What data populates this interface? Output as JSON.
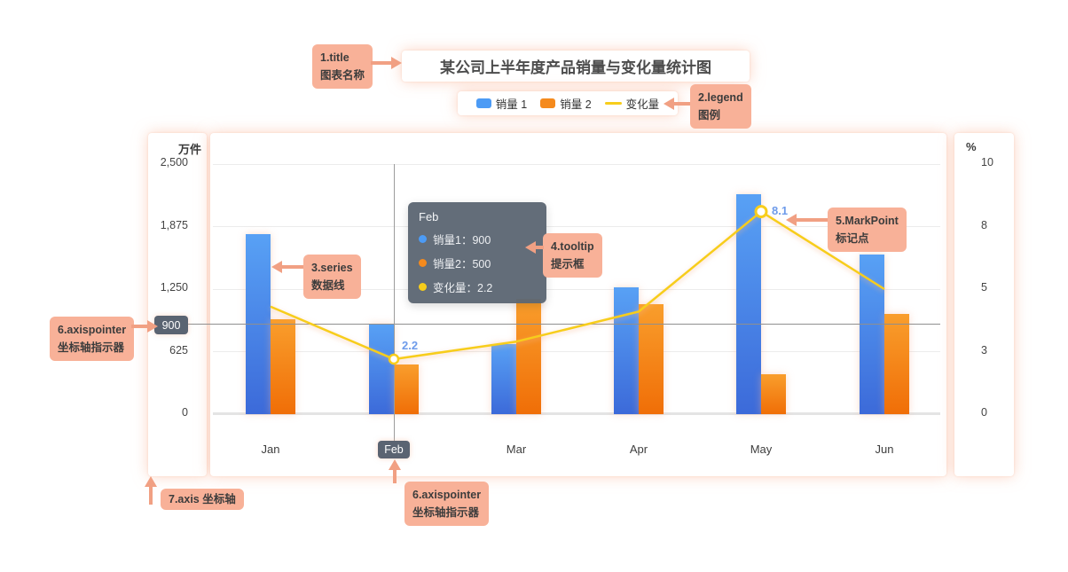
{
  "chart": {
    "title": "某公司上半年度产品销量与变化量统计图",
    "legend": [
      {
        "label": "销量 1",
        "color": "#4C9BF5",
        "type": "rect"
      },
      {
        "label": "销量 2",
        "color": "#F58A1D",
        "type": "rect"
      },
      {
        "label": "变化量",
        "color": "#F7CD1B",
        "type": "line"
      }
    ]
  },
  "callouts": {
    "title": {
      "line1": "1.title",
      "line2": "图表名称"
    },
    "legend": {
      "line1": "2.legend",
      "line2": "图例"
    },
    "series": {
      "line1": "3.series",
      "line2": "数据线"
    },
    "tooltip": {
      "line1": "4.tooltip",
      "line2": "提示框"
    },
    "markpoint": {
      "line1": "5.MarkPoint",
      "line2": "标记点"
    },
    "axispointer_left": {
      "line1": "6.axispointer",
      "line2": "坐标轴指示器"
    },
    "axispointer_bottom": {
      "line1": "6.axispointer",
      "line2": "坐标轴指示器"
    },
    "axis": {
      "line1": "7.axis 坐标轴"
    }
  },
  "tooltip": {
    "header": "Feb",
    "rows": [
      {
        "color": "#4C9BF5",
        "text": "销量1：900"
      },
      {
        "color": "#F58A1D",
        "text": "销量2：500"
      },
      {
        "color": "#F7CD1B",
        "text": "变化量：2.2"
      }
    ]
  },
  "axis_pointer": {
    "y_label": "900",
    "x_label": "Feb"
  },
  "chart_data": {
    "type": "combo",
    "subtypes": [
      "bar",
      "bar",
      "line"
    ],
    "title": "某公司上半年度产品销量与变化量统计图",
    "categories": [
      "Jan",
      "Feb",
      "Mar",
      "Apr",
      "May",
      "Jun"
    ],
    "series": [
      {
        "name": "销量 1",
        "type": "bar",
        "axis": "left",
        "values": [
          1800,
          900,
          700,
          1270,
          2200,
          1600
        ],
        "gradient": [
          "#58A1F5",
          "#3C6AD9"
        ]
      },
      {
        "name": "销量 2",
        "type": "bar",
        "axis": "left",
        "values": [
          950,
          500,
          1150,
          1100,
          400,
          1000
        ],
        "gradient": [
          "#F99E2C",
          "#F06E07"
        ]
      },
      {
        "name": "变化量",
        "type": "line",
        "axis": "right",
        "values": [
          4.3,
          2.2,
          2.9,
          4.1,
          8.1,
          5.0
        ],
        "color": "#F7CD1B"
      }
    ],
    "y_left": {
      "unit": "万件",
      "min": 0,
      "max": 2500,
      "ticks": [
        {
          "v": 2500,
          "label": "2,500"
        },
        {
          "v": 1875,
          "label": "1,875"
        },
        {
          "v": 1250,
          "label": "1,250"
        },
        {
          "v": 625,
          "label": "625"
        },
        {
          "v": 0,
          "label": "0"
        }
      ]
    },
    "y_right": {
      "unit": "%",
      "min": 0,
      "max": 10,
      "ticks": [
        {
          "v": 10,
          "label": "10"
        },
        {
          "v": 7.5,
          "label": "8"
        },
        {
          "v": 5,
          "label": "5"
        },
        {
          "v": 2.5,
          "label": "3"
        },
        {
          "v": 0,
          "label": "0"
        }
      ]
    },
    "grid": true,
    "legend_position": "top",
    "axis_pointer": {
      "y_value": 900,
      "y_label": "900",
      "category_index": 1,
      "x_label": "Feb"
    },
    "highlight_point": {
      "series": "变化量",
      "category_index": 1,
      "value": 2.2,
      "label": "2.2"
    },
    "mark_point": {
      "series": "变化量",
      "category_index": 4,
      "value": 8.1,
      "label": "8.1"
    }
  }
}
